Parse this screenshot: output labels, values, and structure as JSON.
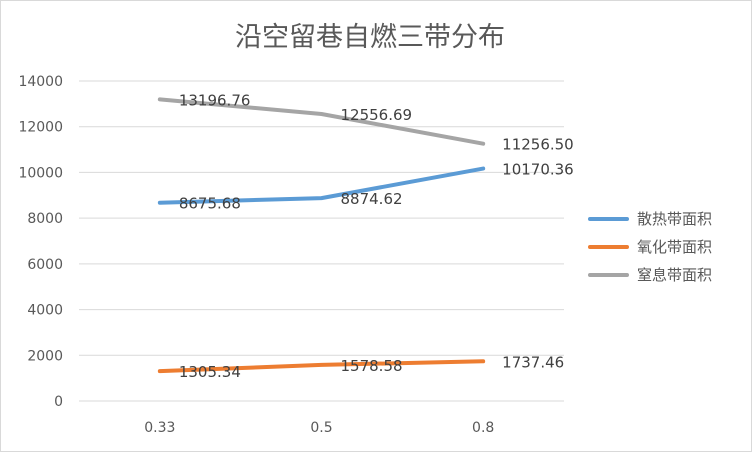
{
  "chart_data": {
    "type": "line",
    "title": "沿空留巷自燃三带分布",
    "categories": [
      "0.33",
      "0.5",
      "0.8"
    ],
    "ylim": [
      0,
      14000
    ],
    "yticks": [
      "0",
      "2000",
      "4000",
      "6000",
      "8000",
      "10000",
      "12000",
      "14000"
    ],
    "grid": true,
    "legend_position": "right",
    "series": [
      {
        "name": "散热带面积",
        "color": "#5b9bd5",
        "values": [
          8675.68,
          8874.62,
          10170.36
        ],
        "labels": [
          "8675.68",
          "8874.62",
          "10170.36"
        ]
      },
      {
        "name": "氧化带面积",
        "color": "#ed7d31",
        "values": [
          1305.34,
          1578.58,
          1737.46
        ],
        "labels": [
          "1305.34",
          "1578.58",
          "1737.46"
        ]
      },
      {
        "name": "窒息带面积",
        "color": "#a5a5a5",
        "values": [
          13196.76,
          12556.69,
          11256.5
        ],
        "labels": [
          "13196.76",
          "12556.69",
          "11256.50"
        ]
      }
    ]
  }
}
